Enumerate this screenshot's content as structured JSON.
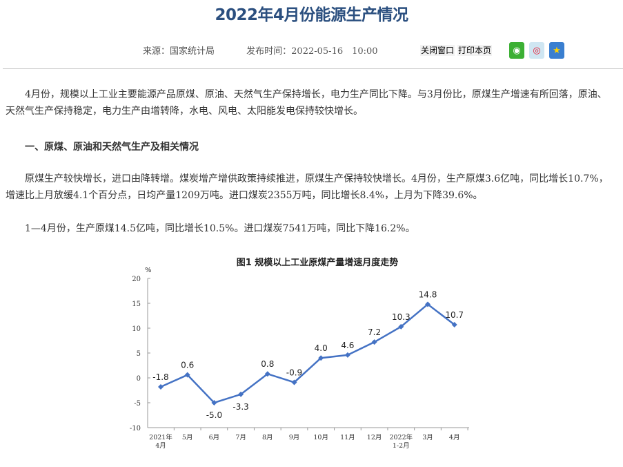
{
  "header": {
    "title": "2022年4月份能源生产情况",
    "source": "来源：国家统计局",
    "published": "发布时间：2022-05-16　10:00",
    "close_label": "关闭窗口",
    "print_label": "打印本页",
    "share": [
      {
        "icon": "wechat-icon",
        "color": "#3cb034"
      },
      {
        "icon": "weibo-icon",
        "color": "#e6162d"
      },
      {
        "icon": "qzone-icon",
        "color": "#f5b400"
      }
    ]
  },
  "article": {
    "intro": "4月份，规模以上工业主要能源产品原煤、原油、天然气生产保持增长，电力生产同比下降。与3月份比，原煤生产增速有所回落，原油、天然气生产保持稳定，电力生产由增转降，水电、风电、太阳能发电保持较快增长。",
    "section1": "一、原煤、原油和天然气生产及相关情况",
    "p1": "原煤生产较快增长，进口由降转增。煤炭增产增供政策持续推进，原煤生产保持较快增长。4月份，生产原煤3.6亿吨，同比增长10.7%，增速比上月放缓4.1个百分点，日均产量1209万吨。进口煤炭2355万吨，同比增长8.4%，上月为下降39.6%。",
    "p2": "1—4月份，生产原煤14.5亿吨，同比增长10.5%。进口煤炭7541万吨，同比下降16.2%。"
  },
  "chart_data": {
    "type": "line",
    "title": "图1  规模以上工业原煤产量增速月度走势",
    "ylabel": "%",
    "ylim": [
      -10,
      20
    ],
    "yticks": [
      20,
      15,
      10,
      5,
      0,
      -5,
      -10
    ],
    "categories": [
      [
        "2021年",
        "4月"
      ],
      [
        "5月"
      ],
      [
        "6月"
      ],
      [
        "7月"
      ],
      [
        "8月"
      ],
      [
        "9月"
      ],
      [
        "10月"
      ],
      [
        "11月"
      ],
      [
        "12月"
      ],
      [
        "2022年",
        "1-2月"
      ],
      [
        "3月"
      ],
      [
        "4月"
      ]
    ],
    "values": [
      -1.8,
      0.6,
      -5.0,
      -3.3,
      0.8,
      -0.9,
      4.0,
      4.6,
      7.2,
      10.3,
      14.8,
      10.7
    ],
    "labels": [
      "-1.8",
      "0.6",
      "-5.0",
      "-3.3",
      "0.8",
      "-0.9",
      "4.0",
      "4.6",
      "7.2",
      "10.3",
      "14.8",
      "10.7"
    ],
    "label_pos": [
      "above",
      "above",
      "below",
      "below",
      "above",
      "above",
      "above",
      "above",
      "above",
      "above",
      "above",
      "above"
    ],
    "color": "#4472c4",
    "grid": false
  }
}
